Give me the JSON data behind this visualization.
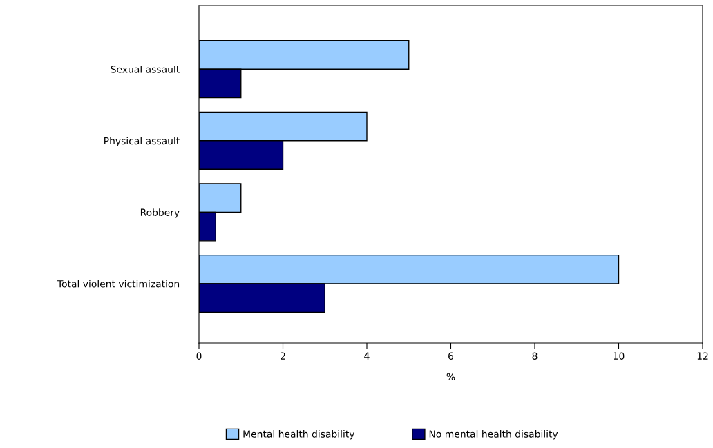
{
  "chart_data": {
    "type": "bar",
    "orientation": "horizontal",
    "categories": [
      "Sexual assault",
      "Physical assault",
      "Robbery",
      "Total violent victimization"
    ],
    "series": [
      {
        "name": "Mental health disability",
        "color": "#99ccff",
        "values": [
          5,
          4,
          1,
          10
        ]
      },
      {
        "name": "No mental health disability",
        "color": "#000080",
        "values": [
          1,
          2,
          0.4,
          3
        ]
      }
    ],
    "xlim": [
      0,
      12
    ],
    "xticks": [
      0,
      2,
      4,
      6,
      8,
      10,
      12
    ],
    "xlabel": "%",
    "grid": false,
    "legend": "bottom"
  }
}
